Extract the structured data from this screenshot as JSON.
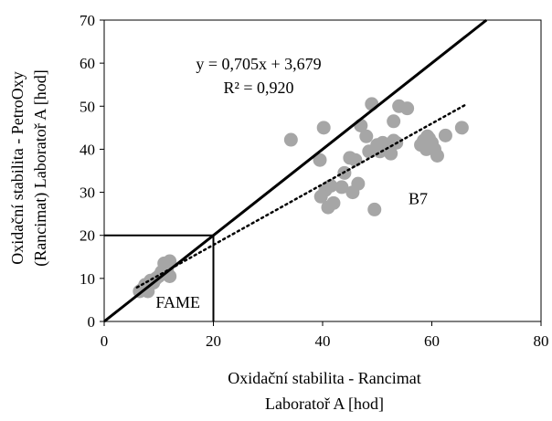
{
  "chart_data": {
    "type": "scatter",
    "xlabel": [
      "Oxidační stabilita - Rancimat",
      "Laboratoř A [hod]"
    ],
    "ylabel": [
      "Oxidační stabilita - PetroOxy",
      "(Rancimat) Laboratoř A [hod]"
    ],
    "xlim": [
      0,
      80
    ],
    "ylim": [
      0,
      70
    ],
    "x_ticks": [
      0,
      20,
      40,
      60,
      80
    ],
    "y_ticks": [
      0,
      10,
      20,
      30,
      40,
      50,
      60,
      70
    ],
    "grid": false,
    "equation": "y = 0,705x + 3,679",
    "r_squared": "R² = 0,920",
    "identity_line": {
      "x": [
        0,
        70
      ],
      "y": [
        0,
        70
      ]
    },
    "trendline": {
      "slope": 0.705,
      "intercept": 3.679,
      "x_range": [
        6,
        66
      ]
    },
    "box": {
      "x": [
        0,
        20
      ],
      "y": [
        0,
        20
      ]
    },
    "annotations": [
      {
        "text": "FAME",
        "x": 13.5,
        "y": 4.5
      },
      {
        "text": "B7",
        "x": 57.5,
        "y": 28.5
      }
    ],
    "point_color": "#a6a6a6",
    "points": [
      [
        6.5,
        7
      ],
      [
        7,
        7.5
      ],
      [
        7.5,
        8.5
      ],
      [
        8,
        7
      ],
      [
        8.5,
        9.5
      ],
      [
        9,
        9
      ],
      [
        9.5,
        10
      ],
      [
        10,
        10.5
      ],
      [
        10.5,
        11.5
      ],
      [
        11,
        13.5
      ],
      [
        11.5,
        12
      ],
      [
        12,
        14
      ],
      [
        12,
        10.5
      ],
      [
        34.2,
        42.2
      ],
      [
        39.5,
        37.5
      ],
      [
        40.2,
        45
      ],
      [
        39.7,
        29
      ],
      [
        40.5,
        30.5
      ],
      [
        41,
        26.5
      ],
      [
        41.5,
        31.5
      ],
      [
        42,
        27.5
      ],
      [
        43.5,
        31.2
      ],
      [
        44,
        34.5
      ],
      [
        45,
        38
      ],
      [
        45.5,
        30
      ],
      [
        46,
        37.5
      ],
      [
        46.5,
        32
      ],
      [
        47,
        45.5
      ],
      [
        48,
        43
      ],
      [
        48.5,
        39.5
      ],
      [
        49,
        50.5
      ],
      [
        49.5,
        26
      ],
      [
        50,
        41
      ],
      [
        50.5,
        39.5
      ],
      [
        51,
        41.5
      ],
      [
        52,
        40
      ],
      [
        52.5,
        39
      ],
      [
        53,
        46.5
      ],
      [
        53,
        42
      ],
      [
        53.5,
        41.5
      ],
      [
        54,
        50
      ],
      [
        55.5,
        49.5
      ],
      [
        58,
        41
      ],
      [
        58.5,
        42
      ],
      [
        59,
        40
      ],
      [
        59.2,
        43
      ],
      [
        59.5,
        42.5
      ],
      [
        60,
        41.5
      ],
      [
        60.5,
        40
      ],
      [
        61,
        38.5
      ],
      [
        62.5,
        43.2
      ],
      [
        65.5,
        45
      ]
    ]
  }
}
